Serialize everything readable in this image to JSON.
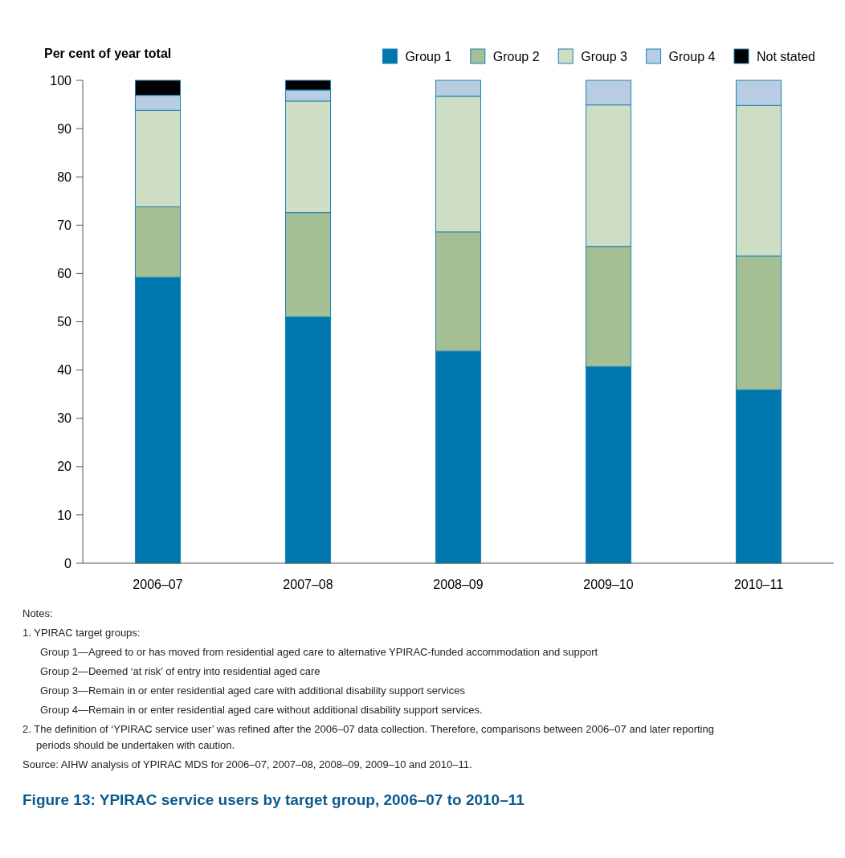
{
  "chart_data": {
    "type": "bar",
    "stacked": true,
    "title": "Figure 13: YPIRAC service users by target group, 2006–07 to 2010–11",
    "ylabel": "Per cent of year total",
    "categories": [
      "2006–07",
      "2007–08",
      "2008–09",
      "2009–10",
      "2010–11"
    ],
    "series": [
      {
        "name": "Group 1",
        "color": "#0078ae",
        "values": [
          59.2,
          51.0,
          43.9,
          40.7,
          35.9
        ]
      },
      {
        "name": "Group 2",
        "color": "#a4bf94",
        "values": [
          14.6,
          21.6,
          24.7,
          24.9,
          27.7
        ]
      },
      {
        "name": "Group 3",
        "color": "#cddec5",
        "values": [
          20.0,
          23.1,
          28.1,
          29.3,
          31.2
        ]
      },
      {
        "name": "Group 4",
        "color": "#b8cce2",
        "values": [
          3.1,
          2.3,
          3.3,
          5.1,
          5.2
        ]
      },
      {
        "name": "Not stated",
        "color": "#000000",
        "values": [
          3.1,
          2.0,
          null,
          null,
          null
        ]
      }
    ],
    "ylim": [
      0,
      100
    ],
    "yticks": [
      0,
      10,
      20,
      30,
      40,
      50,
      60,
      70,
      80,
      90,
      100
    ],
    "grid": false,
    "legend": "top right",
    "annotations": [
      "Notes:",
      "1.  YPIRAC target groups:",
      "Group 1—Agreed to or has moved from residential aged care to alternative YPIRAC-funded accommodation and support",
      "Group 2—Deemed ‘at risk’ of entry into residential aged care",
      "Group 3—Remain in or enter residential aged care with additional disability support services",
      "Group 4—Remain in or enter residential aged care without additional disability support services.",
      "2.  The definition of ‘YPIRAC service user’ was refined after the 2006–07 data collection. Therefore, comparisons between 2006–07 and later reporting periods should be undertaken with caution.",
      "Source: AIHW analysis of YPIRAC MDS for 2006–07, 2007–08, 2008–09, 2009–10 and 2010–11."
    ]
  }
}
